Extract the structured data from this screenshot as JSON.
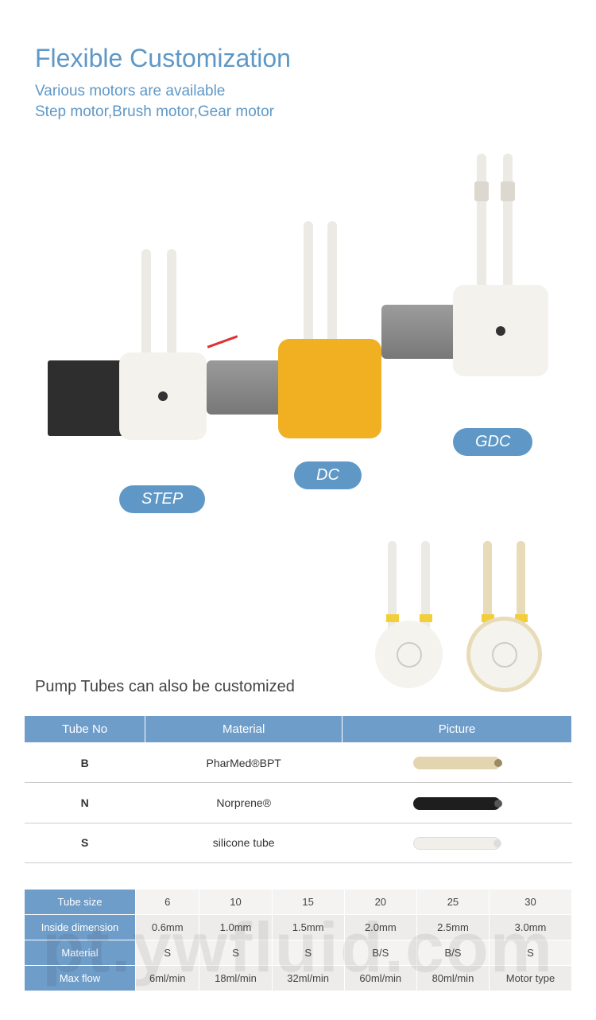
{
  "title": "Flexible Customization",
  "subtitle_line1": "Various motors are available",
  "subtitle_line2": "Step motor,Brush motor,Gear motor",
  "labels": {
    "step": "STEP",
    "dc": "DC",
    "gdc": "GDC"
  },
  "tubes_title": "Pump Tubes can also be customized",
  "colors": {
    "brand_blue": "#5f98c6",
    "table_header": "#6f9dca",
    "pump_head_white": "#f4f2ed",
    "pump_head_yellow": "#f0b021",
    "motor_dark": "#2e2e2e",
    "motor_silver": "#888888",
    "tube_clear": "#eceae5",
    "tube_tan": "#e8dbb8",
    "clip_yellow": "#f2cf3a"
  },
  "table1": {
    "headers": [
      "Tube No",
      "Material",
      "Picture"
    ],
    "rows": [
      {
        "no": "B",
        "material": "PharMed®BPT",
        "pic": "bpt"
      },
      {
        "no": "N",
        "material": "Norprene®",
        "pic": "nor"
      },
      {
        "no": "S",
        "material": "silicone tube",
        "pic": "sil"
      }
    ]
  },
  "table2": {
    "row_labels": [
      "Tube size",
      "Inside dimension",
      "Material",
      "Max flow"
    ],
    "columns": [
      "6",
      "10",
      "15",
      "20",
      "25",
      "30"
    ],
    "inside": [
      "0.6mm",
      "1.0mm",
      "1.5mm",
      "2.0mm",
      "2.5mm",
      "3.0mm"
    ],
    "material": [
      "S",
      "S",
      "S",
      "B/S",
      "B/S",
      "S"
    ],
    "maxflow": [
      "6ml/min",
      "18ml/min",
      "32ml/min",
      "60ml/min",
      "80ml/min",
      "Motor type"
    ]
  },
  "watermark": "pt.ywfluid.com"
}
